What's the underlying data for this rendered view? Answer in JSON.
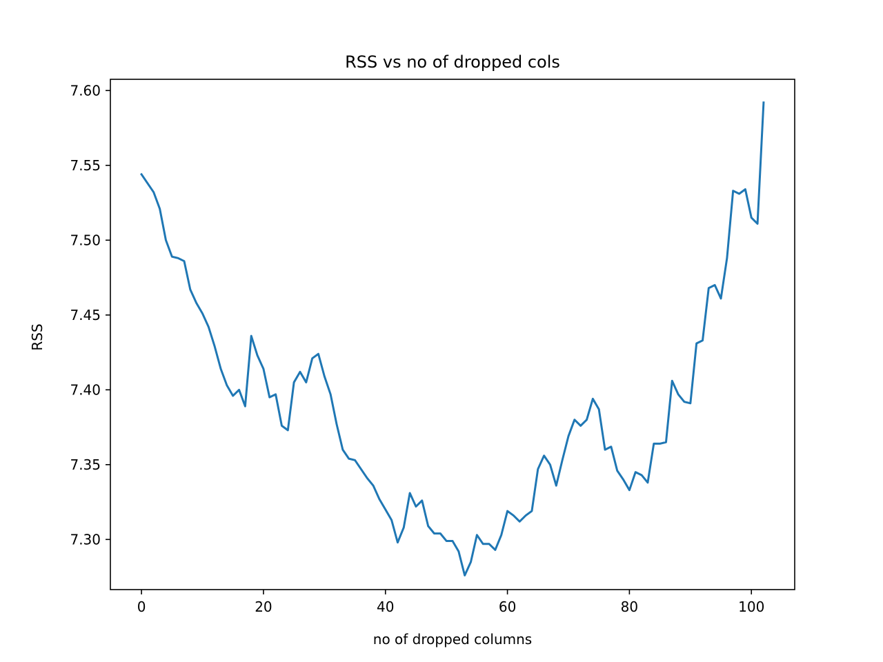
{
  "chart_data": {
    "type": "line",
    "title": "RSS vs no of dropped cols",
    "xlabel": "no of dropped columns",
    "ylabel": "RSS",
    "xlim": [
      -5.1,
      107.1
    ],
    "ylim": [
      7.2665,
      7.6075
    ],
    "xticks": [
      0,
      20,
      40,
      60,
      80,
      100
    ],
    "xtick_labels": [
      "0",
      "20",
      "40",
      "60",
      "80",
      "100"
    ],
    "yticks": [
      7.3,
      7.35,
      7.4,
      7.45,
      7.5,
      7.55,
      7.6
    ],
    "ytick_labels": [
      "7.30",
      "7.35",
      "7.40",
      "7.45",
      "7.50",
      "7.55",
      "7.60"
    ],
    "grid": false,
    "legend": "none",
    "series": [
      {
        "color": "#1f77b4",
        "x": [
          0,
          1,
          2,
          3,
          4,
          5,
          6,
          7,
          8,
          9,
          10,
          11,
          12,
          13,
          14,
          15,
          16,
          17,
          18,
          19,
          20,
          21,
          22,
          23,
          24,
          25,
          26,
          27,
          28,
          29,
          30,
          31,
          32,
          33,
          34,
          35,
          36,
          37,
          38,
          39,
          40,
          41,
          42,
          43,
          44,
          45,
          46,
          47,
          48,
          49,
          50,
          51,
          52,
          53,
          54,
          55,
          56,
          57,
          58,
          59,
          60,
          61,
          62,
          63,
          64,
          65,
          66,
          67,
          68,
          69,
          70,
          71,
          72,
          73,
          74,
          75,
          76,
          77,
          78,
          79,
          80,
          81,
          82,
          83,
          84,
          85,
          86,
          87,
          88,
          89,
          90,
          91,
          92,
          93,
          94,
          95,
          96,
          97,
          98,
          99,
          100,
          101,
          102
        ],
        "values": [
          7.544,
          7.538,
          7.532,
          7.521,
          7.5,
          7.489,
          7.488,
          7.486,
          7.467,
          7.458,
          7.451,
          7.442,
          7.429,
          7.414,
          7.403,
          7.396,
          7.4,
          7.389,
          7.436,
          7.423,
          7.414,
          7.395,
          7.397,
          7.376,
          7.373,
          7.405,
          7.412,
          7.405,
          7.421,
          7.424,
          7.409,
          7.397,
          7.377,
          7.36,
          7.354,
          7.353,
          7.347,
          7.341,
          7.336,
          7.327,
          7.32,
          7.313,
          7.298,
          7.308,
          7.331,
          7.322,
          7.326,
          7.309,
          7.304,
          7.304,
          7.299,
          7.299,
          7.292,
          7.276,
          7.285,
          7.303,
          7.297,
          7.297,
          7.293,
          7.303,
          7.319,
          7.316,
          7.312,
          7.316,
          7.319,
          7.347,
          7.356,
          7.35,
          7.336,
          7.353,
          7.369,
          7.38,
          7.376,
          7.38,
          7.394,
          7.387,
          7.36,
          7.362,
          7.346,
          7.34,
          7.333,
          7.345,
          7.343,
          7.338,
          7.364,
          7.364,
          7.365,
          7.406,
          7.397,
          7.392,
          7.391,
          7.431,
          7.433,
          7.468,
          7.47,
          7.461,
          7.488,
          7.533,
          7.531,
          7.534,
          7.515,
          7.511,
          7.592
        ]
      }
    ]
  }
}
